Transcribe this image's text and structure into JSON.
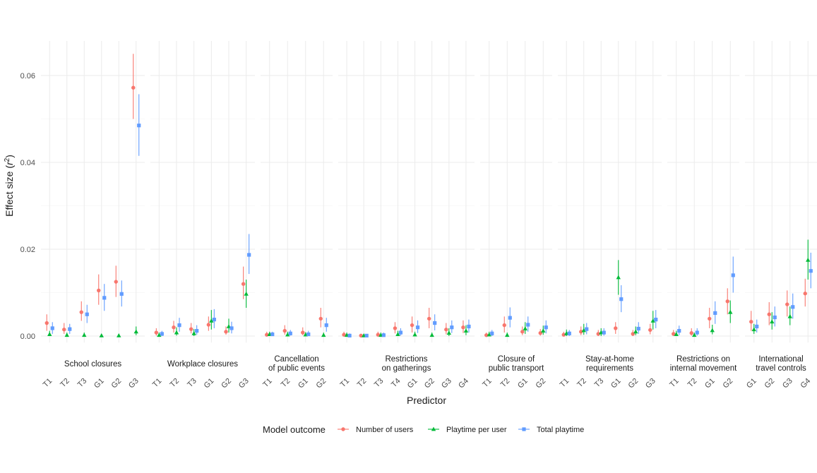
{
  "chart_data": {
    "type": "scatter",
    "xlabel": "Predictor",
    "ylabel": "Effect size (r²)",
    "ylim": [
      -0.0015,
      0.068
    ],
    "y_ticks": [
      {
        "value": 0.0,
        "label": "0.00"
      },
      {
        "value": 0.02,
        "label": "0.02"
      },
      {
        "value": 0.04,
        "label": "0.04"
      },
      {
        "value": 0.06,
        "label": "0.06"
      }
    ],
    "grid": true,
    "legend": {
      "title": "Model outcome",
      "position": "bottom",
      "entries": [
        {
          "label": "Number of users",
          "color": "#F8766D",
          "shape": "circle"
        },
        {
          "label": "Playtime per user",
          "color": "#00BA38",
          "shape": "triangle"
        },
        {
          "label": "Total playtime",
          "color": "#619CFF",
          "shape": "square"
        }
      ]
    },
    "facets": [
      {
        "name": [
          "School closures"
        ],
        "categories": [
          "T1",
          "T2",
          "T3",
          "G1",
          "G2",
          "G3"
        ],
        "series": [
          {
            "name": "Number of users",
            "values": [
              0.003,
              0.0015,
              0.0055,
              0.0105,
              0.0125,
              0.0572
            ],
            "lower": [
              0.0012,
              0.0005,
              0.0035,
              0.0072,
              0.009,
              0.05
            ],
            "upper": [
              0.005,
              0.003,
              0.008,
              0.0142,
              0.0162,
              0.065
            ]
          },
          {
            "name": "Playtime per user",
            "values": [
              0.0004,
              0.0002,
              0.0002,
              0.0001,
              0.0001,
              0.001
            ],
            "lower": [
              0.0,
              0.0,
              0.0,
              0.0,
              0.0,
              0.0002
            ],
            "upper": [
              0.0012,
              0.0008,
              0.0008,
              0.0004,
              0.0003,
              0.0022
            ]
          },
          {
            "name": "Total playtime",
            "values": [
              0.0018,
              0.0016,
              0.005,
              0.0088,
              0.0097,
              0.0485
            ],
            "lower": [
              0.0005,
              0.0005,
              0.003,
              0.0058,
              0.0068,
              0.0415
            ],
            "upper": [
              0.0032,
              0.0028,
              0.0072,
              0.012,
              0.0128,
              0.0557
            ]
          }
        ]
      },
      {
        "name": [
          "Workplace closures"
        ],
        "categories": [
          "T1",
          "T2",
          "T3",
          "G1",
          "G2",
          "G3"
        ],
        "series": [
          {
            "name": "Number of users",
            "values": [
              0.0008,
              0.002,
              0.0016,
              0.0026,
              0.001,
              0.012
            ],
            "lower": [
              0.0001,
              0.0008,
              0.0006,
              0.0012,
              0.0003,
              0.0085
            ],
            "upper": [
              0.0018,
              0.0035,
              0.003,
              0.0045,
              0.0022,
              0.016
            ]
          },
          {
            "name": "Playtime per user",
            "values": [
              0.0002,
              0.0008,
              0.0006,
              0.0035,
              0.0022,
              0.0097
            ],
            "lower": [
              0.0,
              0.0001,
              0.0,
              0.0015,
              0.0008,
              0.0065
            ],
            "upper": [
              0.0008,
              0.002,
              0.0016,
              0.006,
              0.004,
              0.013
            ]
          },
          {
            "name": "Total playtime",
            "values": [
              0.0005,
              0.0025,
              0.0012,
              0.0038,
              0.0018,
              0.0187
            ],
            "lower": [
              0.0,
              0.001,
              0.0003,
              0.0018,
              0.0006,
              0.0143
            ],
            "upper": [
              0.0012,
              0.0042,
              0.0025,
              0.0062,
              0.0033,
              0.0235
            ]
          }
        ]
      },
      {
        "name": [
          "Cancellation",
          "of public events"
        ],
        "categories": [
          "T1",
          "T2",
          "G1",
          "G2"
        ],
        "series": [
          {
            "name": "Number of users",
            "values": [
              0.0003,
              0.0012,
              0.0008,
              0.004
            ],
            "lower": [
              0.0,
              0.0003,
              0.0002,
              0.002
            ],
            "upper": [
              0.001,
              0.0025,
              0.002,
              0.0065
            ]
          },
          {
            "name": "Playtime per user",
            "values": [
              0.0004,
              0.0003,
              0.0003,
              0.0002
            ],
            "lower": [
              0.0,
              0.0,
              0.0,
              0.0
            ],
            "upper": [
              0.001,
              0.001,
              0.0009,
              0.0008
            ]
          },
          {
            "name": "Total playtime",
            "values": [
              0.0004,
              0.0006,
              0.0004,
              0.0025
            ],
            "lower": [
              0.0,
              0.0001,
              0.0,
              0.001
            ],
            "upper": [
              0.001,
              0.0014,
              0.0012,
              0.0042
            ]
          }
        ]
      },
      {
        "name": [
          "Restrictions",
          "on gatherings"
        ],
        "categories": [
          "T1",
          "T2",
          "T3",
          "T4",
          "G1",
          "G2",
          "G3",
          "G4"
        ],
        "series": [
          {
            "name": "Number of users",
            "values": [
              0.0003,
              0.0001,
              0.0003,
              0.0018,
              0.0025,
              0.004,
              0.0015,
              0.002
            ],
            "lower": [
              0.0,
              0.0,
              0.0,
              0.0006,
              0.0008,
              0.0018,
              0.0004,
              0.0007
            ],
            "upper": [
              0.001,
              0.0005,
              0.001,
              0.0032,
              0.0045,
              0.0065,
              0.003,
              0.0036
            ]
          },
          {
            "name": "Playtime per user",
            "values": [
              0.0002,
              0.0001,
              0.0002,
              0.0004,
              0.0003,
              0.0002,
              0.0007,
              0.0012
            ],
            "lower": [
              0.0,
              0.0,
              0.0,
              0.0,
              0.0,
              0.0,
              0.0,
              0.0002
            ],
            "upper": [
              0.0008,
              0.0004,
              0.0008,
              0.0012,
              0.001,
              0.0008,
              0.0018,
              0.0025
            ]
          },
          {
            "name": "Total playtime",
            "values": [
              0.0001,
              0.0001,
              0.0002,
              0.0008,
              0.002,
              0.003,
              0.002,
              0.0022
            ],
            "lower": [
              0.0,
              0.0,
              0.0,
              0.0001,
              0.0007,
              0.0013,
              0.0007,
              0.0008
            ],
            "upper": [
              0.0006,
              0.0004,
              0.0008,
              0.0018,
              0.0036,
              0.005,
              0.0036,
              0.0038
            ]
          }
        ]
      },
      {
        "name": [
          "Closure of",
          "public transport"
        ],
        "categories": [
          "T1",
          "T2",
          "G1",
          "G2"
        ],
        "series": [
          {
            "name": "Number of users",
            "values": [
              0.0002,
              0.0025,
              0.001,
              0.0007
            ],
            "lower": [
              0.0,
              0.0008,
              0.0002,
              0.0001
            ],
            "upper": [
              0.0008,
              0.0045,
              0.0022,
              0.0016
            ]
          },
          {
            "name": "Playtime per user",
            "values": [
              0.0003,
              0.0002,
              0.0017,
              0.0012
            ],
            "lower": [
              0.0,
              0.0,
              0.0005,
              0.0003
            ],
            "upper": [
              0.001,
              0.0008,
              0.0032,
              0.0024
            ]
          },
          {
            "name": "Total playtime",
            "values": [
              0.0006,
              0.0042,
              0.0026,
              0.002
            ],
            "lower": [
              0.0,
              0.002,
              0.001,
              0.0006
            ],
            "upper": [
              0.0014,
              0.0066,
              0.0045,
              0.0036
            ]
          }
        ]
      },
      {
        "name": [
          "Stay-at-home",
          "requirements"
        ],
        "categories": [
          "T1",
          "T2",
          "T3",
          "G1",
          "G2",
          "G3"
        ],
        "series": [
          {
            "name": "Number of users",
            "values": [
              0.0003,
              0.001,
              0.0005,
              0.0018,
              0.0005,
              0.0014
            ],
            "lower": [
              0.0,
              0.0002,
              0.0,
              0.0005,
              0.0,
              0.0004
            ],
            "upper": [
              0.001,
              0.0022,
              0.0014,
              0.0032,
              0.0014,
              0.0028
            ]
          },
          {
            "name": "Playtime per user",
            "values": [
              0.0006,
              0.0013,
              0.0008,
              0.0135,
              0.001,
              0.0035
            ],
            "lower": [
              0.0,
              0.0003,
              0.0,
              0.0095,
              0.0002,
              0.0015
            ],
            "upper": [
              0.0015,
              0.0028,
              0.0018,
              0.0175,
              0.0022,
              0.0058
            ]
          },
          {
            "name": "Total playtime",
            "values": [
              0.0006,
              0.0016,
              0.0008,
              0.0085,
              0.0017,
              0.0038
            ],
            "lower": [
              0.0,
              0.0004,
              0.0001,
              0.0055,
              0.0005,
              0.0018
            ],
            "upper": [
              0.0014,
              0.003,
              0.0018,
              0.0117,
              0.0032,
              0.006
            ]
          }
        ]
      },
      {
        "name": [
          "Restrictions on",
          "internal movement"
        ],
        "categories": [
          "T1",
          "T2",
          "G1",
          "G2"
        ],
        "series": [
          {
            "name": "Number of users",
            "values": [
              0.0005,
              0.0007,
              0.004,
              0.008
            ],
            "lower": [
              0.0,
              0.0001,
              0.0018,
              0.005
            ],
            "upper": [
              0.0014,
              0.0018,
              0.0065,
              0.011
            ]
          },
          {
            "name": "Playtime per user",
            "values": [
              0.0004,
              0.0002,
              0.0013,
              0.0055
            ],
            "lower": [
              0.0,
              0.0,
              0.0004,
              0.003
            ],
            "upper": [
              0.0012,
              0.0008,
              0.0026,
              0.0082
            ]
          },
          {
            "name": "Total playtime",
            "values": [
              0.0012,
              0.0008,
              0.0053,
              0.014
            ],
            "lower": [
              0.0002,
              0.0001,
              0.0028,
              0.01
            ],
            "upper": [
              0.0024,
              0.0018,
              0.008,
              0.0183
            ]
          }
        ]
      },
      {
        "name": [
          "International",
          "travel controls"
        ],
        "categories": [
          "G1",
          "G2",
          "G3",
          "G4"
        ],
        "series": [
          {
            "name": "Number of users",
            "values": [
              0.0033,
              0.005,
              0.0073,
              0.0098
            ],
            "lower": [
              0.0012,
              0.0025,
              0.0045,
              0.0068
            ],
            "upper": [
              0.0058,
              0.0078,
              0.0105,
              0.0132
            ]
          },
          {
            "name": "Playtime per user",
            "values": [
              0.0015,
              0.0033,
              0.0045,
              0.0175
            ],
            "lower": [
              0.0005,
              0.0015,
              0.0025,
              0.013
            ],
            "upper": [
              0.0028,
              0.0055,
              0.0068,
              0.0222
            ]
          },
          {
            "name": "Total playtime",
            "values": [
              0.0022,
              0.0043,
              0.0067,
              0.015
            ],
            "lower": [
              0.0008,
              0.0022,
              0.004,
              0.011
            ],
            "upper": [
              0.0038,
              0.0068,
              0.0098,
              0.0192
            ]
          }
        ]
      }
    ]
  }
}
